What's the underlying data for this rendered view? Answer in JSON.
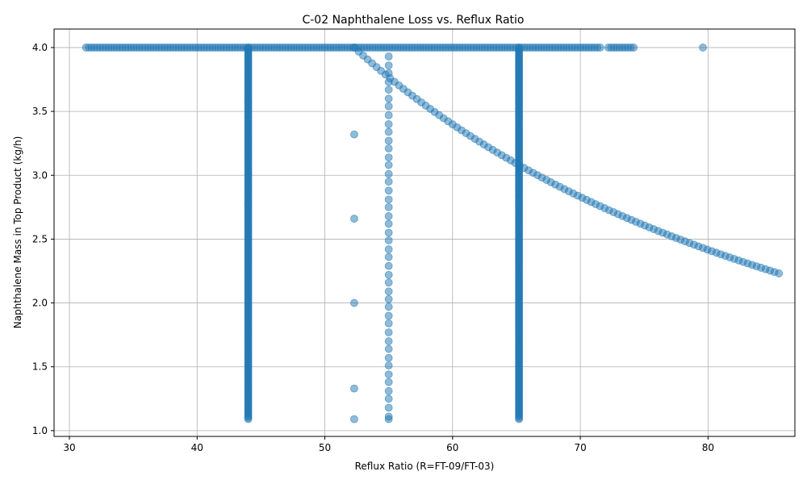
{
  "chart_data": {
    "type": "scatter",
    "title": "C-02 Naphthalene Loss vs. Reflux Ratio",
    "xlabel": "Reflux Ratio (R=FT-09/FT-03)",
    "ylabel": "Naphthalene Mass in Top Product (kg/h)",
    "xlim": [
      28.8,
      86.8
    ],
    "ylim": [
      0.955,
      4.145
    ],
    "xticks": [
      30,
      40,
      50,
      60,
      70,
      80
    ],
    "yticks": [
      1.0,
      1.5,
      2.0,
      2.5,
      3.0,
      3.5,
      4.0
    ],
    "xtick_labels": [
      "30",
      "40",
      "50",
      "60",
      "70",
      "80"
    ],
    "ytick_labels": [
      "1.0",
      "1.5",
      "2.0",
      "2.5",
      "3.0",
      "3.5",
      "4.0"
    ],
    "grid": true,
    "marker_color": "#1f77b4",
    "marker_alpha": 0.5,
    "segments": [
      {
        "kind": "horizontal",
        "y": 4.0,
        "x_start": 31.3,
        "x_end": 71.6
      },
      {
        "kind": "horizontal",
        "y": 4.0,
        "x_start": 72.2,
        "x_end": 74.2
      },
      {
        "kind": "vertical",
        "x": 44.0,
        "y_start": 1.09,
        "y_end": 4.0
      },
      {
        "kind": "vertical",
        "x": 65.2,
        "y_start": 1.09,
        "y_end": 4.0
      },
      {
        "kind": "curve",
        "x_start": 52.3,
        "x_end": 85.6,
        "y_start": 4.0,
        "y_end": 2.23
      }
    ],
    "points": [
      [
        79.6,
        4.0
      ],
      [
        52.3,
        3.32
      ],
      [
        52.3,
        2.66
      ],
      [
        52.3,
        2.0
      ],
      [
        52.3,
        1.33
      ],
      [
        52.3,
        1.09
      ],
      [
        55.0,
        3.93
      ],
      [
        55.0,
        3.86
      ],
      [
        55.0,
        3.8
      ],
      [
        55.0,
        3.73
      ],
      [
        55.0,
        3.67
      ],
      [
        55.0,
        3.6
      ],
      [
        55.0,
        3.54
      ],
      [
        55.0,
        3.47
      ],
      [
        55.0,
        3.4
      ],
      [
        55.0,
        3.34
      ],
      [
        55.0,
        3.27
      ],
      [
        55.0,
        3.21
      ],
      [
        55.0,
        3.14
      ],
      [
        55.0,
        3.08
      ],
      [
        55.0,
        3.01
      ],
      [
        55.0,
        2.95
      ],
      [
        55.0,
        2.88
      ],
      [
        55.0,
        2.81
      ],
      [
        55.0,
        2.75
      ],
      [
        55.0,
        2.68
      ],
      [
        55.0,
        2.62
      ],
      [
        55.0,
        2.55
      ],
      [
        55.0,
        2.49
      ],
      [
        55.0,
        2.42
      ],
      [
        55.0,
        2.36
      ],
      [
        55.0,
        2.29
      ],
      [
        55.0,
        2.22
      ],
      [
        55.0,
        2.16
      ],
      [
        55.0,
        2.09
      ],
      [
        55.0,
        2.03
      ],
      [
        55.0,
        1.97
      ],
      [
        55.0,
        1.9
      ],
      [
        55.0,
        1.84
      ],
      [
        55.0,
        1.77
      ],
      [
        55.0,
        1.7
      ],
      [
        55.0,
        1.64
      ],
      [
        55.0,
        1.57
      ],
      [
        55.0,
        1.51
      ],
      [
        55.0,
        1.44
      ],
      [
        55.0,
        1.38
      ],
      [
        55.0,
        1.31
      ],
      [
        55.0,
        1.25
      ],
      [
        55.0,
        1.18
      ],
      [
        55.0,
        1.11
      ],
      [
        55.0,
        1.09
      ]
    ]
  }
}
